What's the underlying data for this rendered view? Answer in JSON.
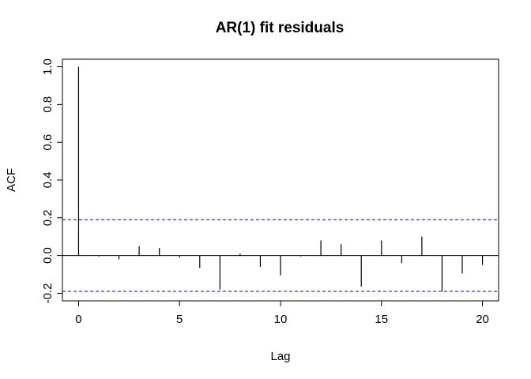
{
  "chart_data": {
    "type": "bar",
    "title": "AR(1) fit residuals",
    "xlabel": "Lag",
    "ylabel": "ACF",
    "xlim": [
      -0.8,
      20.8
    ],
    "ylim": [
      -0.24,
      1.04
    ],
    "x_ticks": [
      "0",
      "5",
      "10",
      "15",
      "20"
    ],
    "y_ticks": [
      "-0.2",
      "0.0",
      "0.2",
      "0.4",
      "0.6",
      "0.8",
      "1.0"
    ],
    "confidence_bound": 0.19,
    "confidence_line_color": "#0000cc",
    "bar_color": "#000000",
    "series": [
      {
        "x": [
          0,
          1,
          2,
          3,
          4,
          5,
          6,
          7,
          8,
          9,
          10,
          11,
          12,
          13,
          14,
          15,
          16,
          17,
          18,
          19,
          20
        ],
        "values": [
          1.0,
          -0.005,
          -0.02,
          0.05,
          0.04,
          -0.01,
          -0.065,
          -0.18,
          0.01,
          -0.06,
          -0.105,
          -0.005,
          0.08,
          0.06,
          -0.165,
          0.08,
          -0.04,
          0.1,
          -0.19,
          -0.095,
          -0.05
        ]
      }
    ],
    "grid": false,
    "legend": "none"
  }
}
